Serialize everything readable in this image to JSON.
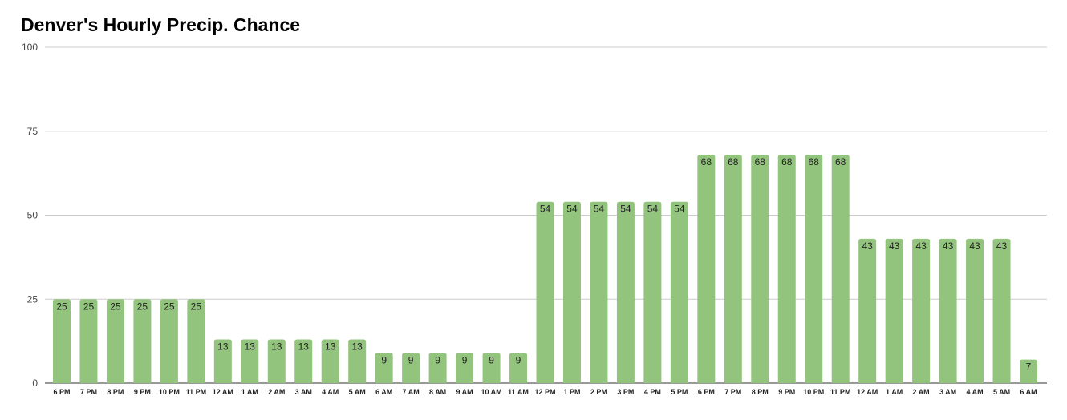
{
  "chart_data": {
    "type": "bar",
    "title": "Denver's Hourly Precip. Chance",
    "xlabel": "",
    "ylabel": "",
    "ylim": [
      0,
      100
    ],
    "yticks": [
      0,
      25,
      50,
      75,
      100
    ],
    "grid": true,
    "legend": "none",
    "bar_color": "#93c47d",
    "categories": [
      "6 PM",
      "7 PM",
      "8 PM",
      "9 PM",
      "10 PM",
      "11 PM",
      "12 AM",
      "1 AM",
      "2 AM",
      "3 AM",
      "4 AM",
      "5 AM",
      "6 AM",
      "7 AM",
      "8 AM",
      "9 AM",
      "10 AM",
      "11 AM",
      "12 PM",
      "1 PM",
      "2 PM",
      "3 PM",
      "4 PM",
      "5 PM",
      "6 PM",
      "7 PM",
      "8 PM",
      "9 PM",
      "10 PM",
      "11 PM",
      "12 AM",
      "1 AM",
      "2 AM",
      "3 AM",
      "4 AM",
      "5 AM",
      "6 AM"
    ],
    "values": [
      25,
      25,
      25,
      25,
      25,
      25,
      13,
      13,
      13,
      13,
      13,
      13,
      9,
      9,
      9,
      9,
      9,
      9,
      54,
      54,
      54,
      54,
      54,
      54,
      68,
      68,
      68,
      68,
      68,
      68,
      43,
      43,
      43,
      43,
      43,
      43,
      7
    ]
  }
}
